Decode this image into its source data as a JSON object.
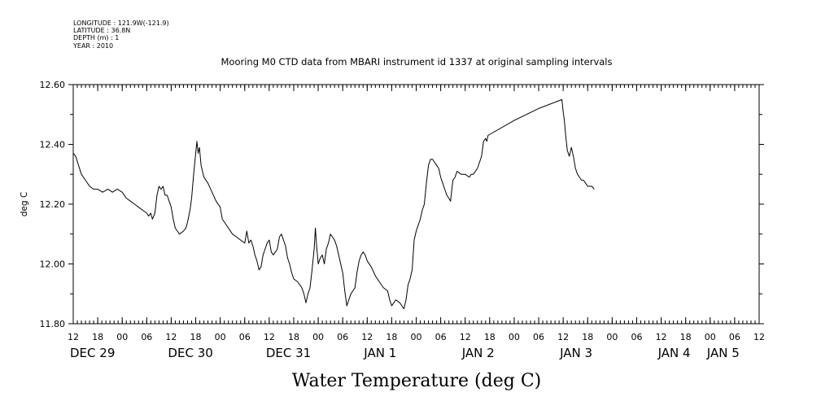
{
  "meta": {
    "longitude": "LONGITUDE : 121.9W(-121.9)",
    "latitude": "LATITUDE : 36.8N",
    "depth": "DEPTH (m) : 1",
    "year": "YEAR : 2010"
  },
  "chart_data": {
    "type": "line",
    "title": "Mooring M0 CTD data from MBARI instrument id 1337 at original sampling intervals",
    "xlabel": "Water Temperature (deg C)",
    "ylabel": "deg C",
    "ylim": [
      11.8,
      12.6
    ],
    "yticks": [
      11.8,
      12.0,
      12.2,
      12.4,
      12.6
    ],
    "ytick_labels": [
      "11.80",
      "12.00",
      "12.20",
      "12.40",
      "12.60"
    ],
    "x_unit": "hours since DEC 29 00:00",
    "xlim": [
      12,
      180
    ],
    "xticks": [
      12,
      18,
      24,
      30,
      36,
      42,
      48,
      54,
      60,
      66,
      72,
      78,
      84,
      90,
      96,
      102,
      108,
      114,
      120,
      126,
      132,
      138,
      144,
      150,
      156,
      162,
      168,
      174,
      180
    ],
    "xtick_labels": [
      "12",
      "18",
      "00",
      "06",
      "12",
      "18",
      "00",
      "06",
      "12",
      "18",
      "00",
      "06",
      "12",
      "18",
      "00",
      "06",
      "12",
      "18",
      "00",
      "06",
      "12",
      "18",
      "00",
      "06",
      "12",
      "18",
      "00",
      "06",
      "12"
    ],
    "day_labels": [
      {
        "x": 12,
        "label": "DEC 29"
      },
      {
        "x": 36,
        "label": "DEC 30"
      },
      {
        "x": 60,
        "label": "DEC 31"
      },
      {
        "x": 84,
        "label": "JAN  1"
      },
      {
        "x": 108,
        "label": "JAN  2"
      },
      {
        "x": 132,
        "label": "JAN  3"
      },
      {
        "x": 156,
        "label": "JAN  4"
      },
      {
        "x": 168,
        "label": "JAN  5"
      }
    ],
    "grid": false,
    "series": [
      {
        "color": "#000000",
        "points": [
          [
            12.0,
            12.37
          ],
          [
            12.6,
            12.36
          ],
          [
            13.3,
            12.33
          ],
          [
            14.0,
            12.3
          ],
          [
            15.0,
            12.28
          ],
          [
            16.0,
            12.26
          ],
          [
            17.0,
            12.25
          ],
          [
            18.0,
            12.25
          ],
          [
            19.2,
            12.24
          ],
          [
            20.5,
            12.25
          ],
          [
            21.6,
            12.24
          ],
          [
            22.8,
            12.25
          ],
          [
            24.0,
            12.24
          ],
          [
            25.0,
            12.22
          ],
          [
            26.0,
            12.21
          ],
          [
            27.0,
            12.2
          ],
          [
            28.0,
            12.19
          ],
          [
            29.0,
            12.18
          ],
          [
            30.0,
            12.17
          ],
          [
            30.5,
            12.16
          ],
          [
            31.0,
            12.17
          ],
          [
            31.4,
            12.15
          ],
          [
            32.0,
            12.17
          ],
          [
            32.5,
            12.23
          ],
          [
            33.0,
            12.26
          ],
          [
            33.5,
            12.25
          ],
          [
            34.0,
            12.26
          ],
          [
            34.5,
            12.23
          ],
          [
            35.0,
            12.23
          ],
          [
            35.5,
            12.21
          ],
          [
            36.0,
            12.19
          ],
          [
            36.5,
            12.15
          ],
          [
            37.0,
            12.12
          ],
          [
            37.5,
            12.11
          ],
          [
            38.0,
            12.1
          ],
          [
            39.0,
            12.11
          ],
          [
            39.6,
            12.12
          ],
          [
            40.0,
            12.14
          ],
          [
            40.6,
            12.18
          ],
          [
            41.0,
            12.22
          ],
          [
            41.5,
            12.3
          ],
          [
            42.0,
            12.37
          ],
          [
            42.3,
            12.41
          ],
          [
            42.6,
            12.37
          ],
          [
            42.9,
            12.39
          ],
          [
            43.3,
            12.33
          ],
          [
            44.0,
            12.29
          ],
          [
            45.0,
            12.27
          ],
          [
            46.0,
            12.24
          ],
          [
            47.0,
            12.21
          ],
          [
            48.0,
            12.19
          ],
          [
            48.5,
            12.15
          ],
          [
            49.0,
            12.14
          ],
          [
            50.0,
            12.12
          ],
          [
            51.0,
            12.1
          ],
          [
            52.0,
            12.09
          ],
          [
            53.0,
            12.08
          ],
          [
            54.0,
            12.07
          ],
          [
            54.5,
            12.11
          ],
          [
            55.0,
            12.07
          ],
          [
            55.5,
            12.08
          ],
          [
            56.0,
            12.06
          ],
          [
            56.5,
            12.03
          ],
          [
            57.0,
            12.01
          ],
          [
            57.5,
            11.98
          ],
          [
            58.0,
            11.99
          ],
          [
            58.5,
            12.03
          ],
          [
            59.0,
            12.05
          ],
          [
            59.5,
            12.07
          ],
          [
            60.0,
            12.08
          ],
          [
            60.5,
            12.04
          ],
          [
            61.0,
            12.03
          ],
          [
            61.5,
            12.04
          ],
          [
            62.0,
            12.05
          ],
          [
            62.5,
            12.09
          ],
          [
            63.0,
            12.1
          ],
          [
            63.5,
            12.08
          ],
          [
            64.0,
            12.06
          ],
          [
            64.5,
            12.02
          ],
          [
            65.0,
            12.0
          ],
          [
            65.5,
            11.97
          ],
          [
            66.0,
            11.95
          ],
          [
            67.0,
            11.94
          ],
          [
            68.0,
            11.92
          ],
          [
            68.5,
            11.9
          ],
          [
            69.0,
            11.87
          ],
          [
            69.5,
            11.9
          ],
          [
            70.0,
            11.92
          ],
          [
            70.5,
            11.98
          ],
          [
            71.0,
            12.05
          ],
          [
            71.3,
            12.12
          ],
          [
            71.6,
            12.06
          ],
          [
            72.0,
            12.0
          ],
          [
            72.5,
            12.02
          ],
          [
            73.0,
            12.03
          ],
          [
            73.5,
            12.0
          ],
          [
            74.0,
            12.05
          ],
          [
            74.5,
            12.07
          ],
          [
            75.0,
            12.1
          ],
          [
            75.5,
            12.09
          ],
          [
            76.0,
            12.08
          ],
          [
            76.5,
            12.06
          ],
          [
            77.0,
            12.03
          ],
          [
            77.5,
            12.0
          ],
          [
            78.0,
            11.97
          ],
          [
            78.5,
            11.91
          ],
          [
            79.0,
            11.86
          ],
          [
            79.5,
            11.88
          ],
          [
            80.0,
            11.9
          ],
          [
            80.5,
            11.91
          ],
          [
            81.0,
            11.92
          ],
          [
            81.5,
            11.97
          ],
          [
            82.0,
            12.01
          ],
          [
            82.5,
            12.03
          ],
          [
            83.0,
            12.04
          ],
          [
            83.5,
            12.03
          ],
          [
            84.0,
            12.01
          ],
          [
            85.0,
            11.99
          ],
          [
            86.0,
            11.96
          ],
          [
            87.0,
            11.94
          ],
          [
            88.0,
            11.92
          ],
          [
            89.0,
            11.91
          ],
          [
            89.5,
            11.88
          ],
          [
            90.0,
            11.86
          ],
          [
            90.5,
            11.87
          ],
          [
            91.0,
            11.88
          ],
          [
            92.0,
            11.87
          ],
          [
            92.5,
            11.86
          ],
          [
            93.0,
            11.85
          ],
          [
            93.5,
            11.88
          ],
          [
            94.0,
            11.93
          ],
          [
            94.5,
            11.95
          ],
          [
            95.0,
            11.98
          ],
          [
            95.5,
            12.08
          ],
          [
            96.0,
            12.11
          ],
          [
            96.5,
            12.13
          ],
          [
            97.0,
            12.15
          ],
          [
            97.5,
            12.18
          ],
          [
            98.0,
            12.2
          ],
          [
            98.5,
            12.27
          ],
          [
            99.0,
            12.33
          ],
          [
            99.5,
            12.35
          ],
          [
            100.0,
            12.35
          ],
          [
            100.5,
            12.34
          ],
          [
            101.0,
            12.33
          ],
          [
            101.5,
            12.32
          ],
          [
            102.0,
            12.29
          ],
          [
            102.5,
            12.27
          ],
          [
            103.0,
            12.25
          ],
          [
            103.5,
            12.23
          ],
          [
            104.0,
            12.22
          ],
          [
            104.4,
            12.21
          ],
          [
            104.8,
            12.26
          ],
          [
            105.0,
            12.28
          ],
          [
            105.5,
            12.29
          ],
          [
            106.0,
            12.31
          ],
          [
            107.0,
            12.3
          ],
          [
            108.0,
            12.3
          ],
          [
            109.0,
            12.29
          ],
          [
            109.5,
            12.3
          ],
          [
            110.0,
            12.3
          ],
          [
            111.0,
            12.32
          ],
          [
            111.5,
            12.34
          ],
          [
            112.0,
            12.36
          ],
          [
            112.5,
            12.41
          ],
          [
            113.0,
            12.42
          ],
          [
            113.3,
            12.41
          ],
          [
            113.6,
            12.43
          ],
          [
            120.0,
            12.48
          ],
          [
            126.0,
            12.52
          ],
          [
            131.7,
            12.55
          ],
          [
            132.0,
            12.51
          ],
          [
            132.3,
            12.48
          ],
          [
            132.6,
            12.43
          ],
          [
            133.0,
            12.38
          ],
          [
            133.5,
            12.36
          ],
          [
            134.0,
            12.39
          ],
          [
            134.5,
            12.36
          ],
          [
            135.0,
            12.32
          ],
          [
            135.5,
            12.3
          ],
          [
            136.0,
            12.29
          ],
          [
            136.5,
            12.28
          ],
          [
            137.0,
            12.28
          ],
          [
            137.5,
            12.27
          ],
          [
            138.0,
            12.26
          ],
          [
            139.0,
            12.26
          ],
          [
            139.6,
            12.25
          ]
        ]
      }
    ]
  }
}
